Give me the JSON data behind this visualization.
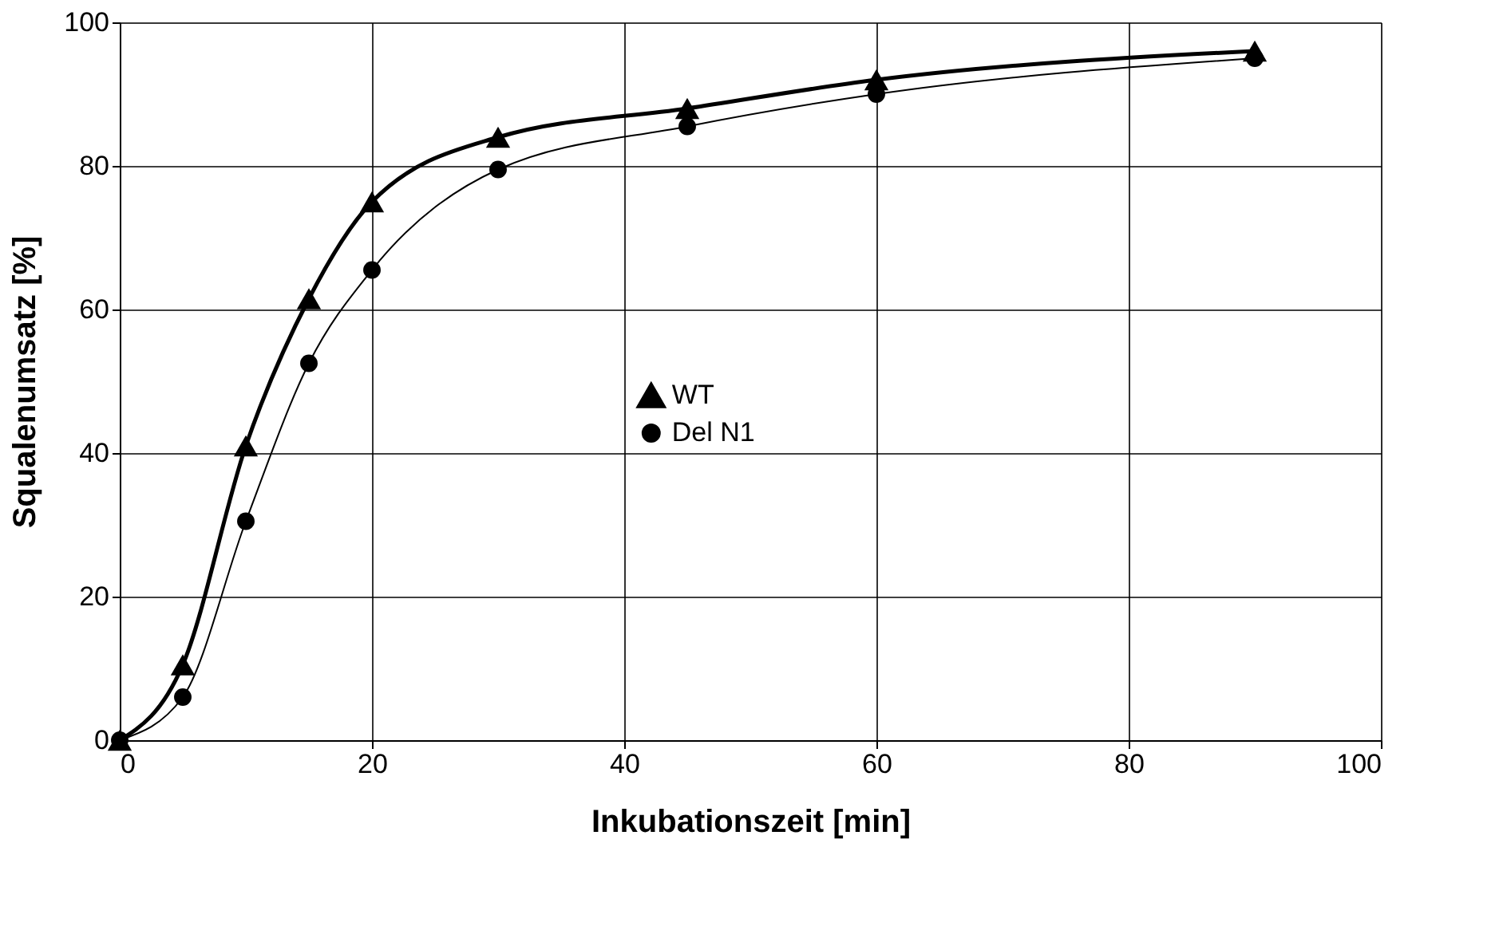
{
  "chart_data": {
    "type": "line",
    "xlabel": "Inkubationszeit [min]",
    "ylabel": "Squalenumsatz [%]",
    "x": [
      0,
      5,
      10,
      15,
      20,
      30,
      45,
      60,
      90
    ],
    "series": [
      {
        "name": "WT",
        "color": "#000000",
        "marker": "triangle",
        "values": [
          0,
          10.5,
          41,
          61.5,
          75,
          84,
          88,
          92,
          96
        ]
      },
      {
        "name": "Del N1",
        "color": "#000000",
        "marker": "circle",
        "values": [
          0,
          6,
          30.5,
          52.5,
          65.5,
          79.5,
          85.5,
          90,
          95
        ]
      }
    ],
    "xlim": [
      0,
      100
    ],
    "xticks": [
      0,
      20,
      40,
      60,
      80,
      100
    ],
    "ylim": [
      0,
      100
    ],
    "yticks": [
      0,
      20,
      40,
      60,
      80,
      100
    ],
    "grid": true,
    "legend": "center",
    "line_style": "solid"
  }
}
